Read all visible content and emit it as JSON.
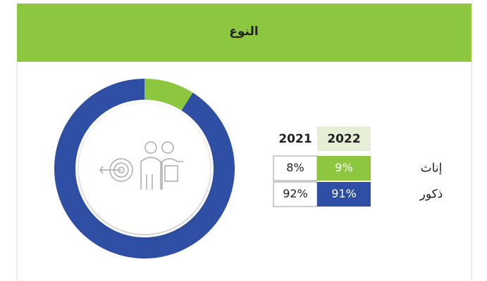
{
  "header": {
    "title": "النوع"
  },
  "chart_data": {
    "type": "donut",
    "categories": [
      "إناث",
      "ذكور"
    ],
    "values": [
      9,
      91
    ],
    "colors": [
      "#8dc63f",
      "#2e4fa3"
    ]
  },
  "table": {
    "columns": [
      "2021",
      "2022"
    ],
    "rows": [
      {
        "label": "إناث",
        "cells": [
          "8%",
          "9%"
        ]
      },
      {
        "label": "ذكور",
        "cells": [
          "92%",
          "91%"
        ]
      }
    ]
  }
}
